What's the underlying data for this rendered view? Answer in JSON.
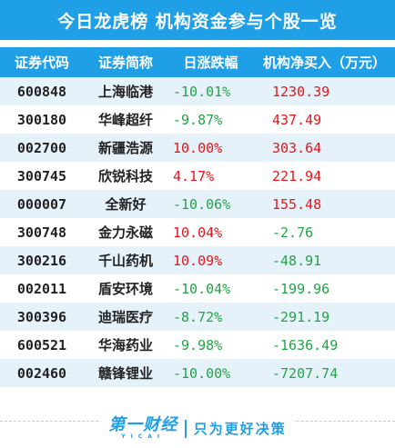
{
  "title": "今日龙虎榜 机构资金参与个股一览",
  "headers": {
    "code": "证券代码",
    "name": "证券简称",
    "change": "日涨跌幅",
    "net_buy": "机构净买入（万元）"
  },
  "rows": [
    {
      "code": "600848",
      "name": "上海临港",
      "change": "-10.01%",
      "net_buy": "1230.39",
      "change_dir": "down",
      "net_dir": "up"
    },
    {
      "code": "300180",
      "name": "华峰超纤",
      "change": "-9.87%",
      "net_buy": "437.49",
      "change_dir": "down",
      "net_dir": "up"
    },
    {
      "code": "002700",
      "name": "新疆浩源",
      "change": "10.00%",
      "net_buy": "303.64",
      "change_dir": "up",
      "net_dir": "up"
    },
    {
      "code": "300745",
      "name": "欣锐科技",
      "change": "4.17%",
      "net_buy": "221.94",
      "change_dir": "up",
      "net_dir": "up"
    },
    {
      "code": "000007",
      "name": "全新好",
      "change": "-10.06%",
      "net_buy": "155.48",
      "change_dir": "down",
      "net_dir": "up"
    },
    {
      "code": "300748",
      "name": "金力永磁",
      "change": "10.04%",
      "net_buy": "-2.76",
      "change_dir": "up",
      "net_dir": "down"
    },
    {
      "code": "300216",
      "name": "千山药机",
      "change": "10.09%",
      "net_buy": "-48.91",
      "change_dir": "up",
      "net_dir": "down"
    },
    {
      "code": "002011",
      "name": "盾安环境",
      "change": "-10.04%",
      "net_buy": "-199.96",
      "change_dir": "down",
      "net_dir": "down"
    },
    {
      "code": "300396",
      "name": "迪瑞医疗",
      "change": "-8.72%",
      "net_buy": "-291.19",
      "change_dir": "down",
      "net_dir": "down"
    },
    {
      "code": "600521",
      "name": "华海药业",
      "change": "-9.98%",
      "net_buy": "-1636.49",
      "change_dir": "down",
      "net_dir": "down"
    },
    {
      "code": "002460",
      "name": "赣锋锂业",
      "change": "-10.00%",
      "net_buy": "-7207.74",
      "change_dir": "down",
      "net_dir": "down"
    }
  ],
  "footer": {
    "logo_main": "第一财经",
    "logo_sub": "YICAI",
    "slogan": "只为更好决策"
  },
  "colors": {
    "accent": "#1e9fe6",
    "up": "#e8141b",
    "down": "#22a447",
    "stripe": "#e6f2fa"
  }
}
